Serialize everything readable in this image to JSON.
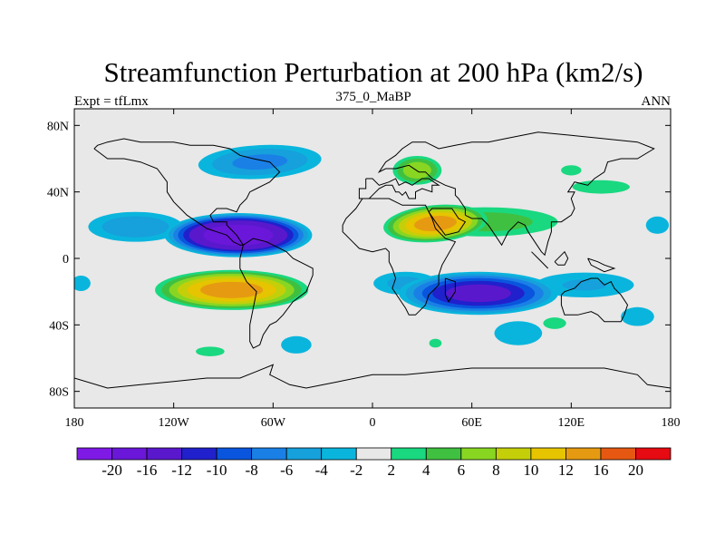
{
  "chart_data": {
    "type": "heatmap",
    "title": "Streamfunction Perturbation at 200 hPa (km2/s)",
    "left_label": "Expt = tfLmx",
    "center_label": "375_0_MaBP",
    "right_label": "ANN",
    "x_ticks": [
      "180",
      "120W",
      "60W",
      "0",
      "60E",
      "120E",
      "180"
    ],
    "x_tick_values": [
      -180,
      -120,
      -60,
      0,
      60,
      120,
      180
    ],
    "y_ticks": [
      "80N",
      "40N",
      "0",
      "40S",
      "80S"
    ],
    "y_tick_values": [
      80,
      40,
      0,
      -40,
      -80
    ],
    "xlim": [
      -180,
      180
    ],
    "ylim": [
      -90,
      90
    ],
    "colorbar_labels": [
      "-20",
      "-16",
      "-12",
      "-10",
      "-8",
      "-6",
      "-4",
      "-2",
      "2",
      "4",
      "6",
      "8",
      "10",
      "12",
      "16",
      "20"
    ],
    "colorbar_levels": [
      -20,
      -16,
      -12,
      -10,
      -8,
      -6,
      -4,
      -2,
      2,
      4,
      6,
      8,
      10,
      12,
      16,
      20
    ],
    "colorbar_colors": [
      "#7f1ae6",
      "#6a17d9",
      "#5a18cc",
      "#2020cc",
      "#0a55dd",
      "#1a80e6",
      "#16a0dc",
      "#0ab5dd",
      "#e8e8e8",
      "#1ad880",
      "#40c040",
      "#88d622",
      "#c4cf0a",
      "#e6c400",
      "#e69a12",
      "#e65812",
      "#e60a12"
    ],
    "blobs": [
      {
        "lon": -81,
        "lat": 14,
        "rx": 47,
        "ry": 14,
        "peak": -20,
        "tilt": 0
      },
      {
        "lon": -143,
        "lat": 19,
        "rx": 35,
        "ry": 11,
        "peak": -6,
        "tilt": 0
      },
      {
        "lon": -68,
        "lat": 58,
        "rx": 44,
        "ry": 12,
        "peak": -7,
        "tilt": -3
      },
      {
        "lon": -85,
        "lat": -19,
        "rx": 50,
        "ry": 13,
        "peak": 14,
        "tilt": 0
      },
      {
        "lon": 38,
        "lat": 21,
        "rx": 34,
        "ry": 12,
        "peak": 14,
        "tilt": -5
      },
      {
        "lon": 68,
        "lat": 22,
        "rx": 55,
        "ry": 11,
        "peak": 5.5,
        "tilt": 0
      },
      {
        "lon": 27,
        "lat": 53,
        "rx": 17,
        "ry": 10,
        "peak": 8,
        "tilt": 0
      },
      {
        "lon": 138,
        "lat": 43,
        "rx": 30,
        "ry": 7,
        "peak": 3,
        "tilt": 0
      },
      {
        "lon": 120,
        "lat": 53,
        "rx": 10,
        "ry": 5,
        "peak": 3.2,
        "tilt": 0
      },
      {
        "lon": 172,
        "lat": 20,
        "rx": 12,
        "ry": 9,
        "peak": -3,
        "tilt": 0
      },
      {
        "lon": 64,
        "lat": -21,
        "rx": 52,
        "ry": 14,
        "peak": -14,
        "tilt": 0
      },
      {
        "lon": 20,
        "lat": -15,
        "rx": 25,
        "ry": 9,
        "peak": -5,
        "tilt": 0
      },
      {
        "lon": 128,
        "lat": -16,
        "rx": 40,
        "ry": 10,
        "peak": -4.5,
        "tilt": 0
      },
      {
        "lon": 88,
        "lat": -45,
        "rx": 22,
        "ry": 11,
        "peak": -3.5,
        "tilt": 0
      },
      {
        "lon": 160,
        "lat": -35,
        "rx": 16,
        "ry": 9,
        "peak": -3.3,
        "tilt": 0
      },
      {
        "lon": -176,
        "lat": -15,
        "rx": 10,
        "ry": 8,
        "peak": -3,
        "tilt": 0
      },
      {
        "lon": -46,
        "lat": -52,
        "rx": 14,
        "ry": 8,
        "peak": -3.5,
        "tilt": 0
      },
      {
        "lon": 110,
        "lat": -39,
        "rx": 12,
        "ry": 6,
        "peak": 3,
        "tilt": 0
      },
      {
        "lon": -98,
        "lat": -56,
        "rx": 15,
        "ry": 5,
        "peak": 3,
        "tilt": 0
      },
      {
        "lon": 38,
        "lat": -51,
        "rx": 7,
        "ry": 5,
        "peak": 2.8,
        "tilt": 0
      }
    ],
    "coastlines": [
      [
        [
          -4,
          48
        ],
        [
          -4,
          42
        ],
        [
          -8,
          42
        ],
        [
          -8,
          36
        ],
        [
          -2,
          36
        ],
        [
          0,
          38
        ],
        [
          4,
          42
        ],
        [
          8,
          44
        ],
        [
          12,
          44
        ],
        [
          14,
          40
        ],
        [
          16,
          40
        ],
        [
          18,
          38
        ],
        [
          20,
          40
        ],
        [
          22,
          36
        ],
        [
          26,
          36
        ],
        [
          26,
          40
        ],
        [
          30,
          42
        ],
        [
          36,
          40
        ],
        [
          36,
          44
        ],
        [
          40,
          44
        ],
        [
          34,
          48
        ],
        [
          30,
          48
        ],
        [
          24,
          44
        ],
        [
          20,
          46
        ],
        [
          16,
          44
        ],
        [
          14,
          48
        ],
        [
          10,
          46
        ],
        [
          4,
          44
        ],
        [
          0,
          48
        ],
        [
          -4,
          48
        ]
      ],
      [
        [
          -18,
          20
        ],
        [
          -18,
          16
        ],
        [
          -12,
          10
        ],
        [
          -8,
          6
        ],
        [
          0,
          4
        ],
        [
          8,
          6
        ],
        [
          10,
          4
        ],
        [
          10,
          -2
        ],
        [
          12,
          -6
        ],
        [
          14,
          -12
        ],
        [
          12,
          -18
        ],
        [
          16,
          -24
        ],
        [
          20,
          -30
        ],
        [
          22,
          -34
        ],
        [
          26,
          -34
        ],
        [
          32,
          -28
        ],
        [
          34,
          -22
        ],
        [
          40,
          -16
        ],
        [
          40,
          -10
        ],
        [
          42,
          -4
        ],
        [
          50,
          10
        ],
        [
          44,
          12
        ],
        [
          38,
          18
        ],
        [
          36,
          24
        ],
        [
          34,
          28
        ],
        [
          32,
          32
        ],
        [
          24,
          32
        ],
        [
          18,
          32
        ],
        [
          14,
          34
        ],
        [
          10,
          36
        ],
        [
          2,
          36
        ],
        [
          -6,
          36
        ],
        [
          -10,
          30
        ],
        [
          -16,
          24
        ],
        [
          -18,
          20
        ]
      ],
      [
        [
          34,
          28
        ],
        [
          38,
          22
        ],
        [
          44,
          14
        ],
        [
          52,
          16
        ],
        [
          56,
          22
        ],
        [
          52,
          24
        ],
        [
          48,
          30
        ],
        [
          44,
          30
        ],
        [
          40,
          30
        ],
        [
          36,
          30
        ],
        [
          34,
          28
        ]
      ],
      [
        [
          56,
          26
        ],
        [
          60,
          24
        ],
        [
          66,
          24
        ],
        [
          70,
          20
        ],
        [
          74,
          14
        ],
        [
          78,
          8
        ],
        [
          82,
          16
        ],
        [
          88,
          22
        ],
        [
          92,
          20
        ],
        [
          94,
          16
        ],
        [
          98,
          10
        ],
        [
          102,
          4
        ],
        [
          104,
          2
        ],
        [
          106,
          10
        ],
        [
          108,
          16
        ],
        [
          108,
          22
        ],
        [
          114,
          22
        ],
        [
          120,
          26
        ],
        [
          122,
          30
        ],
        [
          120,
          36
        ],
        [
          122,
          40
        ],
        [
          118,
          40
        ],
        [
          122,
          46
        ],
        [
          130,
          44
        ],
        [
          134,
          48
        ],
        [
          140,
          52
        ],
        [
          142,
          58
        ],
        [
          150,
          60
        ],
        [
          160,
          60
        ],
        [
          170,
          66
        ],
        [
          160,
          70
        ],
        [
          140,
          72
        ],
        [
          120,
          74
        ],
        [
          100,
          76
        ],
        [
          80,
          72
        ],
        [
          70,
          70
        ],
        [
          60,
          70
        ],
        [
          50,
          68
        ],
        [
          40,
          66
        ],
        [
          32,
          70
        ],
        [
          24,
          70
        ],
        [
          18,
          66
        ],
        [
          14,
          62
        ],
        [
          8,
          58
        ],
        [
          4,
          52
        ],
        [
          8,
          54
        ],
        [
          14,
          54
        ],
        [
          22,
          56
        ],
        [
          28,
          52
        ],
        [
          32,
          52
        ],
        [
          36,
          48
        ],
        [
          44,
          44
        ],
        [
          50,
          42
        ],
        [
          50,
          38
        ],
        [
          52,
          36
        ],
        [
          56,
          30
        ],
        [
          56,
          26
        ]
      ],
      [
        [
          -168,
          66
        ],
        [
          -160,
          60
        ],
        [
          -150,
          60
        ],
        [
          -140,
          58
        ],
        [
          -130,
          54
        ],
        [
          -124,
          46
        ],
        [
          -124,
          40
        ],
        [
          -120,
          34
        ],
        [
          -116,
          30
        ],
        [
          -112,
          26
        ],
        [
          -106,
          22
        ],
        [
          -100,
          18
        ],
        [
          -94,
          16
        ],
        [
          -88,
          14
        ],
        [
          -84,
          10
        ],
        [
          -80,
          8
        ],
        [
          -78,
          8
        ],
        [
          -82,
          14
        ],
        [
          -88,
          20
        ],
        [
          -88,
          22
        ],
        [
          -96,
          22
        ],
        [
          -98,
          26
        ],
        [
          -94,
          30
        ],
        [
          -88,
          30
        ],
        [
          -82,
          28
        ],
        [
          -80,
          32
        ],
        [
          -76,
          36
        ],
        [
          -74,
          40
        ],
        [
          -70,
          42
        ],
        [
          -66,
          44
        ],
        [
          -62,
          46
        ],
        [
          -60,
          48
        ],
        [
          -56,
          52
        ],
        [
          -62,
          58
        ],
        [
          -72,
          60
        ],
        [
          -80,
          62
        ],
        [
          -86,
          66
        ],
        [
          -96,
          68
        ],
        [
          -110,
          68
        ],
        [
          -120,
          70
        ],
        [
          -130,
          70
        ],
        [
          -140,
          70
        ],
        [
          -150,
          72
        ],
        [
          -160,
          70
        ],
        [
          -166,
          68
        ],
        [
          -168,
          66
        ]
      ],
      [
        [
          -78,
          8
        ],
        [
          -72,
          12
        ],
        [
          -64,
          10
        ],
        [
          -60,
          8
        ],
        [
          -52,
          4
        ],
        [
          -48,
          0
        ],
        [
          -40,
          -4
        ],
        [
          -36,
          -6
        ],
        [
          -36,
          -10
        ],
        [
          -40,
          -20
        ],
        [
          -48,
          -26
        ],
        [
          -54,
          -34
        ],
        [
          -58,
          -38
        ],
        [
          -62,
          -40
        ],
        [
          -66,
          -46
        ],
        [
          -68,
          -52
        ],
        [
          -72,
          -54
        ],
        [
          -74,
          -50
        ],
        [
          -74,
          -40
        ],
        [
          -72,
          -30
        ],
        [
          -70,
          -20
        ],
        [
          -76,
          -14
        ],
        [
          -80,
          -6
        ],
        [
          -80,
          0
        ],
        [
          -78,
          8
        ]
      ],
      [
        [
          44,
          -12
        ],
        [
          50,
          -14
        ],
        [
          50,
          -20
        ],
        [
          46,
          -26
        ],
        [
          44,
          -22
        ],
        [
          44,
          -16
        ],
        [
          44,
          -12
        ]
      ],
      [
        [
          114,
          -22
        ],
        [
          116,
          -20
        ],
        [
          122,
          -18
        ],
        [
          126,
          -14
        ],
        [
          132,
          -12
        ],
        [
          136,
          -12
        ],
        [
          140,
          -16
        ],
        [
          144,
          -14
        ],
        [
          146,
          -18
        ],
        [
          150,
          -22
        ],
        [
          154,
          -28
        ],
        [
          152,
          -34
        ],
        [
          150,
          -38
        ],
        [
          144,
          -38
        ],
        [
          140,
          -38
        ],
        [
          136,
          -34
        ],
        [
          132,
          -32
        ],
        [
          124,
          -34
        ],
        [
          116,
          -34
        ],
        [
          114,
          -28
        ],
        [
          114,
          -22
        ]
      ],
      [
        [
          96,
          4
        ],
        [
          102,
          -2
        ],
        [
          106,
          -6
        ],
        [
          100,
          0
        ],
        [
          96,
          4
        ]
      ],
      [
        [
          110,
          -2
        ],
        [
          116,
          4
        ],
        [
          118,
          0
        ],
        [
          116,
          -4
        ],
        [
          112,
          -4
        ],
        [
          110,
          -2
        ]
      ],
      [
        [
          130,
          0
        ],
        [
          136,
          -2
        ],
        [
          140,
          -4
        ],
        [
          146,
          -6
        ],
        [
          140,
          -8
        ],
        [
          132,
          -4
        ],
        [
          130,
          0
        ]
      ],
      [
        [
          -180,
          -72
        ],
        [
          -160,
          -78
        ],
        [
          -140,
          -76
        ],
        [
          -120,
          -74
        ],
        [
          -100,
          -72
        ],
        [
          -80,
          -72
        ],
        [
          -70,
          -68
        ],
        [
          -60,
          -64
        ],
        [
          -62,
          -70
        ],
        [
          -50,
          -76
        ],
        [
          -40,
          -78
        ],
        [
          -20,
          -74
        ],
        [
          0,
          -70
        ],
        [
          20,
          -70
        ],
        [
          40,
          -68
        ],
        [
          60,
          -66
        ],
        [
          80,
          -66
        ],
        [
          100,
          -66
        ],
        [
          120,
          -66
        ],
        [
          140,
          -66
        ],
        [
          160,
          -70
        ],
        [
          166,
          -76
        ],
        [
          180,
          -78
        ]
      ]
    ]
  }
}
